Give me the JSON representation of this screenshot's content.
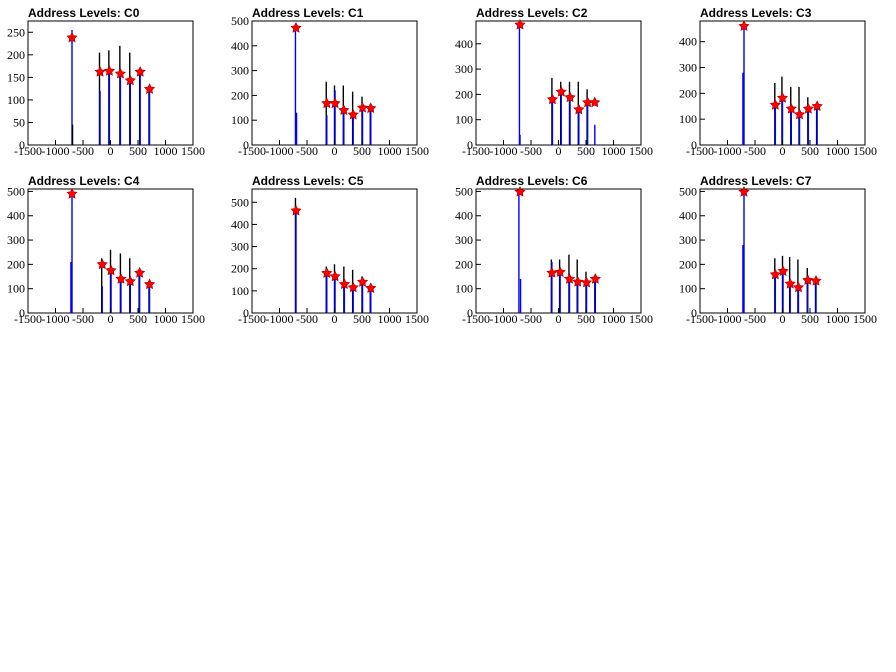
{
  "chart_data": [
    {
      "type": "bar",
      "title": "Address Levels: C0",
      "xlim": [
        -1500,
        1500
      ],
      "ylim": [
        0,
        275
      ],
      "xticks": [
        -1500,
        -1000,
        -500,
        0,
        500,
        1000,
        1500
      ],
      "yticks": [
        0,
        50,
        100,
        150,
        200,
        250
      ],
      "bars": [
        {
          "x": -700,
          "y": 255,
          "color": "#0000ff"
        },
        {
          "x": -690,
          "y": 45,
          "color": "#000000"
        },
        {
          "x": -200,
          "y": 205,
          "color": "#000000"
        },
        {
          "x": -190,
          "y": 120,
          "color": "#0000ff"
        },
        {
          "x": -30,
          "y": 210,
          "color": "#000000"
        },
        {
          "x": -20,
          "y": 160,
          "color": "#0000ff"
        },
        {
          "x": 170,
          "y": 220,
          "color": "#000000"
        },
        {
          "x": 180,
          "y": 150,
          "color": "#0000ff"
        },
        {
          "x": 350,
          "y": 205,
          "color": "#000000"
        },
        {
          "x": 360,
          "y": 140,
          "color": "#0000ff"
        },
        {
          "x": 530,
          "y": 170,
          "color": "#000000"
        },
        {
          "x": 540,
          "y": 160,
          "color": "#0000ff"
        },
        {
          "x": 700,
          "y": 130,
          "color": "#000000"
        },
        {
          "x": 710,
          "y": 125,
          "color": "#0000ff"
        }
      ],
      "peaks": [
        {
          "x": -700,
          "y": 238
        },
        {
          "x": -190,
          "y": 162
        },
        {
          "x": -20,
          "y": 164
        },
        {
          "x": 180,
          "y": 158
        },
        {
          "x": 360,
          "y": 143
        },
        {
          "x": 540,
          "y": 162
        },
        {
          "x": 710,
          "y": 124
        }
      ]
    },
    {
      "type": "bar",
      "title": "Address Levels: C1",
      "xlim": [
        -1500,
        1500
      ],
      "ylim": [
        0,
        500
      ],
      "xticks": [
        -1500,
        -1000,
        -500,
        0,
        500,
        1000,
        1500
      ],
      "yticks": [
        0,
        100,
        200,
        300,
        400,
        500
      ],
      "bars": [
        {
          "x": -710,
          "y": 490,
          "color": "#0000ff"
        },
        {
          "x": -690,
          "y": 130,
          "color": "#0000ff"
        },
        {
          "x": -150,
          "y": 255,
          "color": "#000000"
        },
        {
          "x": -140,
          "y": 120,
          "color": "#0000ff"
        },
        {
          "x": 0,
          "y": 240,
          "color": "#000000"
        },
        {
          "x": 10,
          "y": 220,
          "color": "#0000ff"
        },
        {
          "x": 160,
          "y": 240,
          "color": "#000000"
        },
        {
          "x": 170,
          "y": 140,
          "color": "#0000ff"
        },
        {
          "x": 330,
          "y": 215,
          "color": "#000000"
        },
        {
          "x": 340,
          "y": 120,
          "color": "#0000ff"
        },
        {
          "x": 500,
          "y": 195,
          "color": "#000000"
        },
        {
          "x": 510,
          "y": 150,
          "color": "#0000ff"
        },
        {
          "x": 650,
          "y": 165,
          "color": "#000000"
        },
        {
          "x": 660,
          "y": 150,
          "color": "#0000ff"
        }
      ],
      "peaks": [
        {
          "x": -700,
          "y": 472
        },
        {
          "x": -140,
          "y": 168
        },
        {
          "x": 10,
          "y": 168
        },
        {
          "x": 170,
          "y": 140
        },
        {
          "x": 340,
          "y": 122
        },
        {
          "x": 510,
          "y": 150
        },
        {
          "x": 660,
          "y": 148
        }
      ]
    },
    {
      "type": "bar",
      "title": "Address Levels: C2",
      "xlim": [
        -1500,
        1500
      ],
      "ylim": [
        0,
        490
      ],
      "xticks": [
        -1500,
        -1000,
        -500,
        0,
        500,
        1000,
        1500
      ],
      "yticks": [
        0,
        100,
        200,
        300,
        400
      ],
      "bars": [
        {
          "x": -710,
          "y": 480,
          "color": "#0000ff"
        },
        {
          "x": -700,
          "y": 40,
          "color": "#0000ff"
        },
        {
          "x": -120,
          "y": 265,
          "color": "#000000"
        },
        {
          "x": -110,
          "y": 170,
          "color": "#0000ff"
        },
        {
          "x": 40,
          "y": 250,
          "color": "#000000"
        },
        {
          "x": 50,
          "y": 210,
          "color": "#0000ff"
        },
        {
          "x": 200,
          "y": 250,
          "color": "#000000"
        },
        {
          "x": 210,
          "y": 190,
          "color": "#0000ff"
        },
        {
          "x": 360,
          "y": 250,
          "color": "#000000"
        },
        {
          "x": 370,
          "y": 140,
          "color": "#0000ff"
        },
        {
          "x": 520,
          "y": 220,
          "color": "#000000"
        },
        {
          "x": 530,
          "y": 175,
          "color": "#0000ff"
        },
        {
          "x": 660,
          "y": 80,
          "color": "#0000ff"
        }
      ],
      "peaks": [
        {
          "x": -700,
          "y": 475
        },
        {
          "x": -110,
          "y": 180
        },
        {
          "x": 50,
          "y": 210
        },
        {
          "x": 210,
          "y": 188
        },
        {
          "x": 370,
          "y": 140
        },
        {
          "x": 530,
          "y": 168
        },
        {
          "x": 660,
          "y": 168
        }
      ]
    },
    {
      "type": "bar",
      "title": "Address Levels: C3",
      "xlim": [
        -1500,
        1500
      ],
      "ylim": [
        0,
        480
      ],
      "xticks": [
        -1500,
        -1000,
        -500,
        0,
        500,
        1000,
        1500
      ],
      "yticks": [
        0,
        100,
        200,
        300,
        400
      ],
      "bars": [
        {
          "x": -720,
          "y": 280,
          "color": "#0000ff"
        },
        {
          "x": -700,
          "y": 470,
          "color": "#0000ff"
        },
        {
          "x": -140,
          "y": 240,
          "color": "#000000"
        },
        {
          "x": -130,
          "y": 150,
          "color": "#0000ff"
        },
        {
          "x": -10,
          "y": 265,
          "color": "#000000"
        },
        {
          "x": 0,
          "y": 190,
          "color": "#0000ff"
        },
        {
          "x": 150,
          "y": 225,
          "color": "#000000"
        },
        {
          "x": 160,
          "y": 140,
          "color": "#0000ff"
        },
        {
          "x": 300,
          "y": 225,
          "color": "#000000"
        },
        {
          "x": 310,
          "y": 120,
          "color": "#0000ff"
        },
        {
          "x": 460,
          "y": 185,
          "color": "#000000"
        },
        {
          "x": 470,
          "y": 140,
          "color": "#0000ff"
        },
        {
          "x": 620,
          "y": 160,
          "color": "#000000"
        },
        {
          "x": 630,
          "y": 150,
          "color": "#0000ff"
        }
      ],
      "peaks": [
        {
          "x": -700,
          "y": 460
        },
        {
          "x": -130,
          "y": 155
        },
        {
          "x": 0,
          "y": 182
        },
        {
          "x": 160,
          "y": 140
        },
        {
          "x": 310,
          "y": 118
        },
        {
          "x": 470,
          "y": 140
        },
        {
          "x": 630,
          "y": 150
        }
      ]
    },
    {
      "type": "bar",
      "title": "Address Levels: C4",
      "xlim": [
        -1500,
        1500
      ],
      "ylim": [
        0,
        510
      ],
      "xticks": [
        -1500,
        -1000,
        -500,
        0,
        500,
        1000,
        1500
      ],
      "yticks": [
        0,
        100,
        200,
        300,
        400,
        500
      ],
      "bars": [
        {
          "x": -720,
          "y": 210,
          "color": "#0000ff"
        },
        {
          "x": -700,
          "y": 500,
          "color": "#0000ff"
        },
        {
          "x": -160,
          "y": 225,
          "color": "#000000"
        },
        {
          "x": -150,
          "y": 110,
          "color": "#0000ff"
        },
        {
          "x": 0,
          "y": 260,
          "color": "#000000"
        },
        {
          "x": 10,
          "y": 175,
          "color": "#0000ff"
        },
        {
          "x": 180,
          "y": 245,
          "color": "#000000"
        },
        {
          "x": 190,
          "y": 140,
          "color": "#0000ff"
        },
        {
          "x": 350,
          "y": 225,
          "color": "#000000"
        },
        {
          "x": 360,
          "y": 130,
          "color": "#0000ff"
        },
        {
          "x": 520,
          "y": 170,
          "color": "#000000"
        },
        {
          "x": 530,
          "y": 165,
          "color": "#0000ff"
        },
        {
          "x": 700,
          "y": 130,
          "color": "#000000"
        },
        {
          "x": 710,
          "y": 115,
          "color": "#0000ff"
        }
      ],
      "peaks": [
        {
          "x": -700,
          "y": 490
        },
        {
          "x": -150,
          "y": 200
        },
        {
          "x": 10,
          "y": 175
        },
        {
          "x": 190,
          "y": 140
        },
        {
          "x": 360,
          "y": 130
        },
        {
          "x": 530,
          "y": 165
        },
        {
          "x": 710,
          "y": 118
        }
      ]
    },
    {
      "type": "bar",
      "title": "Address Levels: C5",
      "xlim": [
        -1500,
        1500
      ],
      "ylim": [
        0,
        560
      ],
      "xticks": [
        -1500,
        -1000,
        -500,
        0,
        500,
        1000,
        1500
      ],
      "yticks": [
        0,
        100,
        200,
        300,
        400,
        500
      ],
      "bars": [
        {
          "x": -710,
          "y": 520,
          "color": "#000000"
        },
        {
          "x": -700,
          "y": 475,
          "color": "#0000ff"
        },
        {
          "x": -150,
          "y": 210,
          "color": "#000000"
        },
        {
          "x": -140,
          "y": 180,
          "color": "#0000ff"
        },
        {
          "x": 0,
          "y": 220,
          "color": "#000000"
        },
        {
          "x": 10,
          "y": 160,
          "color": "#0000ff"
        },
        {
          "x": 170,
          "y": 210,
          "color": "#000000"
        },
        {
          "x": 180,
          "y": 130,
          "color": "#0000ff"
        },
        {
          "x": 330,
          "y": 195,
          "color": "#000000"
        },
        {
          "x": 340,
          "y": 110,
          "color": "#0000ff"
        },
        {
          "x": 500,
          "y": 165,
          "color": "#000000"
        },
        {
          "x": 510,
          "y": 140,
          "color": "#0000ff"
        },
        {
          "x": 650,
          "y": 125,
          "color": "#000000"
        },
        {
          "x": 660,
          "y": 110,
          "color": "#0000ff"
        }
      ],
      "peaks": [
        {
          "x": -700,
          "y": 462
        },
        {
          "x": -140,
          "y": 180
        },
        {
          "x": 10,
          "y": 165
        },
        {
          "x": 180,
          "y": 130
        },
        {
          "x": 340,
          "y": 115
        },
        {
          "x": 510,
          "y": 140
        },
        {
          "x": 660,
          "y": 112
        }
      ]
    },
    {
      "type": "bar",
      "title": "Address Levels: C6",
      "xlim": [
        -1500,
        1500
      ],
      "ylim": [
        0,
        510
      ],
      "xticks": [
        -1500,
        -1000,
        -500,
        0,
        500,
        1000,
        1500
      ],
      "yticks": [
        0,
        100,
        200,
        300,
        400,
        500
      ],
      "bars": [
        {
          "x": -720,
          "y": 505,
          "color": "#0000ff"
        },
        {
          "x": -690,
          "y": 140,
          "color": "#0000ff"
        },
        {
          "x": -130,
          "y": 220,
          "color": "#000000"
        },
        {
          "x": -120,
          "y": 210,
          "color": "#0000ff"
        },
        {
          "x": 20,
          "y": 220,
          "color": "#000000"
        },
        {
          "x": 30,
          "y": 160,
          "color": "#0000ff"
        },
        {
          "x": 190,
          "y": 240,
          "color": "#000000"
        },
        {
          "x": 200,
          "y": 140,
          "color": "#0000ff"
        },
        {
          "x": 340,
          "y": 220,
          "color": "#000000"
        },
        {
          "x": 350,
          "y": 130,
          "color": "#0000ff"
        },
        {
          "x": 500,
          "y": 170,
          "color": "#000000"
        },
        {
          "x": 510,
          "y": 125,
          "color": "#0000ff"
        },
        {
          "x": 660,
          "y": 150,
          "color": "#000000"
        },
        {
          "x": 670,
          "y": 140,
          "color": "#0000ff"
        }
      ],
      "peaks": [
        {
          "x": -700,
          "y": 498
        },
        {
          "x": -120,
          "y": 165
        },
        {
          "x": 30,
          "y": 168
        },
        {
          "x": 200,
          "y": 140
        },
        {
          "x": 350,
          "y": 128
        },
        {
          "x": 510,
          "y": 125
        },
        {
          "x": 670,
          "y": 140
        }
      ]
    },
    {
      "type": "bar",
      "title": "Address Levels: C7",
      "xlim": [
        -1500,
        1500
      ],
      "ylim": [
        0,
        510
      ],
      "xticks": [
        -1500,
        -1000,
        -500,
        0,
        500,
        1000,
        1500
      ],
      "yticks": [
        0,
        100,
        200,
        300,
        400,
        500
      ],
      "bars": [
        {
          "x": -720,
          "y": 280,
          "color": "#0000ff"
        },
        {
          "x": -700,
          "y": 505,
          "color": "#0000ff"
        },
        {
          "x": -140,
          "y": 225,
          "color": "#000000"
        },
        {
          "x": -130,
          "y": 150,
          "color": "#0000ff"
        },
        {
          "x": 0,
          "y": 235,
          "color": "#000000"
        },
        {
          "x": 10,
          "y": 170,
          "color": "#0000ff"
        },
        {
          "x": 130,
          "y": 230,
          "color": "#000000"
        },
        {
          "x": 140,
          "y": 120,
          "color": "#0000ff"
        },
        {
          "x": 280,
          "y": 220,
          "color": "#000000"
        },
        {
          "x": 290,
          "y": 105,
          "color": "#0000ff"
        },
        {
          "x": 450,
          "y": 185,
          "color": "#000000"
        },
        {
          "x": 460,
          "y": 130,
          "color": "#0000ff"
        },
        {
          "x": 600,
          "y": 140,
          "color": "#000000"
        },
        {
          "x": 610,
          "y": 130,
          "color": "#0000ff"
        }
      ],
      "peaks": [
        {
          "x": -700,
          "y": 498
        },
        {
          "x": -130,
          "y": 158
        },
        {
          "x": 10,
          "y": 172
        },
        {
          "x": 140,
          "y": 120
        },
        {
          "x": 290,
          "y": 105
        },
        {
          "x": 460,
          "y": 135
        },
        {
          "x": 610,
          "y": 132
        }
      ]
    }
  ]
}
